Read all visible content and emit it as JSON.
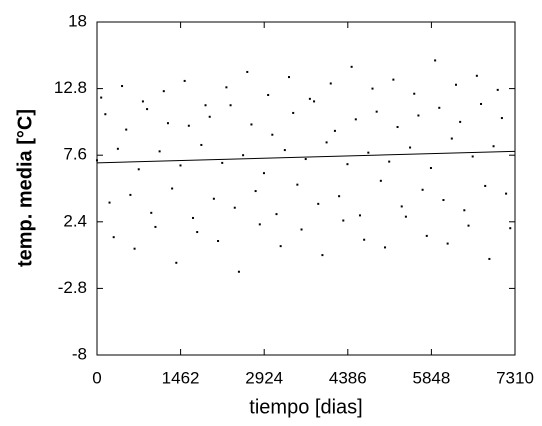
{
  "chart_data": {
    "type": "scatter",
    "ylabel": "temp. media [°C]",
    "xlabel": "tiempo [dias]",
    "xlim": [
      0,
      7310
    ],
    "xticks": [
      0,
      1462,
      2924,
      4386,
      5848,
      7310
    ],
    "ylim": [
      -8,
      18
    ],
    "yticks": [
      -8,
      -2.8,
      2.4,
      7.6,
      12.8,
      18
    ],
    "color": "#000000",
    "x": [
      0,
      73,
      146,
      219,
      292,
      365,
      438,
      511,
      584,
      657,
      730,
      803,
      876,
      949,
      1022,
      1095,
      1168,
      1241,
      1314,
      1387,
      1460,
      1533,
      1606,
      1679,
      1752,
      1825,
      1898,
      1971,
      2044,
      2117,
      2190,
      2263,
      2336,
      2409,
      2482,
      2555,
      2628,
      2701,
      2774,
      2847,
      2920,
      2993,
      3066,
      3139,
      3212,
      3285,
      3358,
      3431,
      3504,
      3577,
      3650,
      3723,
      3796,
      3869,
      3942,
      4015,
      4088,
      4161,
      4234,
      4307,
      4380,
      4453,
      4526,
      4599,
      4672,
      4745,
      4818,
      4891,
      4964,
      5037,
      5110,
      5183,
      5256,
      5329,
      5402,
      5475,
      5548,
      5621,
      5694,
      5767,
      5840,
      5913,
      5986,
      6059,
      6132,
      6205,
      6278,
      6351,
      6424,
      6497,
      6570,
      6643,
      6716,
      6789,
      6862,
      6935,
      7008,
      7081,
      7154,
      7227
    ],
    "values": [
      7.2,
      12.1,
      10.8,
      3.9,
      1.2,
      8.1,
      13.0,
      9.6,
      4.5,
      0.3,
      6.5,
      11.8,
      11.2,
      3.1,
      2.0,
      7.9,
      12.6,
      10.1,
      5.0,
      -0.8,
      6.8,
      13.4,
      9.9,
      2.7,
      1.6,
      8.4,
      11.5,
      10.6,
      4.2,
      0.9,
      7.0,
      12.9,
      11.5,
      3.5,
      -1.5,
      7.6,
      14.1,
      10.0,
      4.8,
      2.2,
      6.2,
      12.3,
      9.2,
      3.0,
      0.5,
      8.0,
      13.7,
      10.9,
      5.3,
      1.8,
      7.3,
      12.0,
      11.8,
      3.8,
      -0.2,
      8.6,
      13.2,
      9.5,
      4.4,
      2.5,
      6.9,
      14.5,
      10.4,
      2.9,
      1.0,
      7.8,
      12.8,
      11.0,
      5.6,
      0.4,
      7.1,
      13.5,
      9.8,
      3.6,
      2.8,
      8.2,
      12.4,
      10.7,
      4.9,
      1.3,
      6.6,
      15.0,
      11.3,
      4.1,
      0.7,
      8.9,
      13.1,
      10.2,
      3.3,
      2.1,
      7.5,
      13.8,
      11.6,
      5.2,
      -0.5,
      8.3,
      12.7,
      10.5,
      4.6,
      1.9
    ],
    "trend": {
      "x": [
        0,
        7310
      ],
      "values": [
        7.0,
        7.9
      ]
    }
  }
}
